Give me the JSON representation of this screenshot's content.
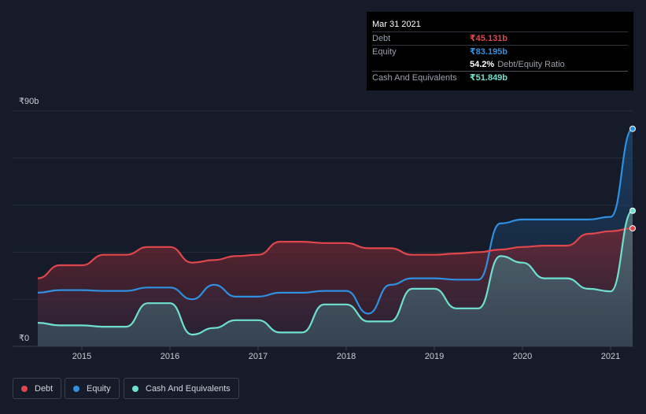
{
  "tooltip": {
    "date": "Mar 31 2021",
    "debt_label": "Debt",
    "debt_value": "₹45.131b",
    "equity_label": "Equity",
    "equity_value": "₹83.195b",
    "ratio_value": "54.2%",
    "ratio_label": "Debt/Equity Ratio",
    "cash_label": "Cash And Equivalents",
    "cash_value": "₹51.849b"
  },
  "legend": {
    "debt": "Debt",
    "equity": "Equity",
    "cash": "Cash And Equivalents"
  },
  "colors": {
    "debt": "#e0474c",
    "equity": "#2f8fe0",
    "cash": "#6fe0cf",
    "background": "#151b29",
    "tooltip_bg": "#000000"
  },
  "chart_data": {
    "type": "area",
    "y_unit": "₹ billions",
    "ylim": [
      0,
      90
    ],
    "y_ticks": [
      {
        "value": 90,
        "label": "₹90b"
      },
      {
        "value": 0,
        "label": "₹0"
      }
    ],
    "x_ticks": [
      "2015",
      "2016",
      "2017",
      "2018",
      "2019",
      "2020",
      "2021"
    ],
    "grid": true,
    "legend_position": "bottom-left",
    "series": [
      {
        "name": "Debt",
        "points": [
          [
            2014.5,
            26
          ],
          [
            2014.75,
            31
          ],
          [
            2015.0,
            31
          ],
          [
            2015.25,
            35
          ],
          [
            2015.5,
            35
          ],
          [
            2015.75,
            38
          ],
          [
            2016.0,
            38
          ],
          [
            2016.25,
            32
          ],
          [
            2016.5,
            33
          ],
          [
            2016.75,
            34.5
          ],
          [
            2017.0,
            35
          ],
          [
            2017.25,
            40
          ],
          [
            2017.5,
            40
          ],
          [
            2017.75,
            39.5
          ],
          [
            2018.0,
            39.5
          ],
          [
            2018.25,
            37.5
          ],
          [
            2018.5,
            37.5
          ],
          [
            2018.75,
            35
          ],
          [
            2019.0,
            35
          ],
          [
            2019.25,
            35.5
          ],
          [
            2019.5,
            36
          ],
          [
            2019.75,
            37
          ],
          [
            2020.0,
            38
          ],
          [
            2020.25,
            38.5
          ],
          [
            2020.5,
            38.5
          ],
          [
            2020.75,
            43
          ],
          [
            2021.0,
            44
          ],
          [
            2021.25,
            45.131
          ]
        ]
      },
      {
        "name": "Equity",
        "points": [
          [
            2014.5,
            20.5
          ],
          [
            2014.75,
            21.5
          ],
          [
            2015.0,
            21.5
          ],
          [
            2015.25,
            21.2
          ],
          [
            2015.5,
            21.2
          ],
          [
            2015.75,
            22.5
          ],
          [
            2016.0,
            22.5
          ],
          [
            2016.25,
            18
          ],
          [
            2016.5,
            23.5
          ],
          [
            2016.75,
            19
          ],
          [
            2017.0,
            19
          ],
          [
            2017.25,
            20.5
          ],
          [
            2017.5,
            20.5
          ],
          [
            2017.75,
            21.2
          ],
          [
            2018.0,
            21.2
          ],
          [
            2018.25,
            12.5
          ],
          [
            2018.5,
            23.5
          ],
          [
            2018.75,
            26
          ],
          [
            2019.0,
            26
          ],
          [
            2019.25,
            25.5
          ],
          [
            2019.5,
            25.5
          ],
          [
            2019.75,
            47
          ],
          [
            2020.0,
            48.5
          ],
          [
            2020.25,
            48.5
          ],
          [
            2020.5,
            48.5
          ],
          [
            2020.75,
            48.5
          ],
          [
            2021.0,
            49.5
          ],
          [
            2021.25,
            83.195
          ]
        ]
      },
      {
        "name": "Cash And Equivalents",
        "points": [
          [
            2014.5,
            9
          ],
          [
            2014.75,
            8
          ],
          [
            2015.0,
            8
          ],
          [
            2015.25,
            7.5
          ],
          [
            2015.5,
            7.5
          ],
          [
            2015.75,
            16.5
          ],
          [
            2016.0,
            16.5
          ],
          [
            2016.25,
            4.5
          ],
          [
            2016.5,
            7
          ],
          [
            2016.75,
            10
          ],
          [
            2017.0,
            10
          ],
          [
            2017.25,
            5.3
          ],
          [
            2017.5,
            5.3
          ],
          [
            2017.75,
            16
          ],
          [
            2018.0,
            16
          ],
          [
            2018.25,
            9.5
          ],
          [
            2018.5,
            9.5
          ],
          [
            2018.75,
            22
          ],
          [
            2019.0,
            22
          ],
          [
            2019.25,
            14.5
          ],
          [
            2019.5,
            14.5
          ],
          [
            2019.75,
            34.5
          ],
          [
            2020.0,
            32
          ],
          [
            2020.25,
            26
          ],
          [
            2020.5,
            26
          ],
          [
            2020.75,
            22
          ],
          [
            2021.0,
            21
          ],
          [
            2021.25,
            51.849
          ]
        ]
      }
    ]
  }
}
